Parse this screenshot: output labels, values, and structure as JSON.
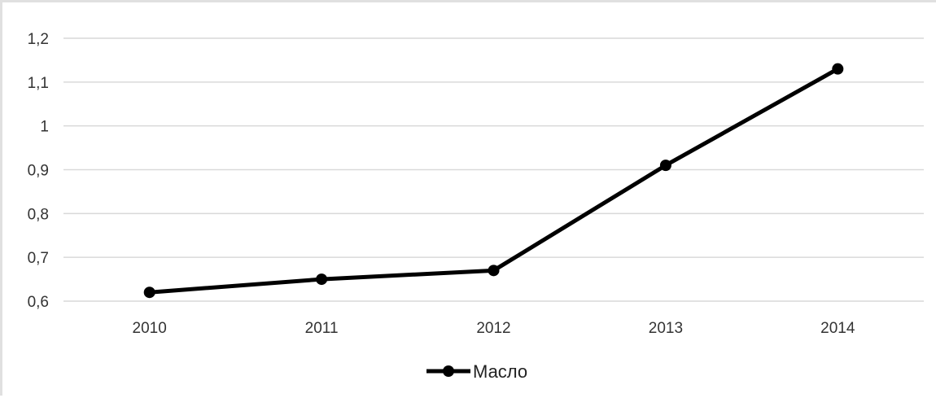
{
  "chart_data": {
    "type": "line",
    "title": "",
    "xlabel": "",
    "ylabel": "",
    "categories": [
      "2010",
      "2011",
      "2012",
      "2013",
      "2014"
    ],
    "series": [
      {
        "name": "Масло",
        "values": [
          0.62,
          0.65,
          0.67,
          0.91,
          1.13
        ],
        "color": "#000000",
        "marker": "circle"
      }
    ],
    "ylim": [
      0.6,
      1.2
    ],
    "yticks": [
      0.6,
      0.7,
      0.8,
      0.9,
      1.0,
      1.1,
      1.2
    ],
    "ytick_labels": [
      "0,6",
      "0,7",
      "0,8",
      "0,9",
      "1",
      "1,1",
      "1,2"
    ],
    "grid": true,
    "legend_position": "bottom",
    "colors": {
      "line": "#000000",
      "grid": "#d9d9d9",
      "text": "#333333"
    }
  }
}
